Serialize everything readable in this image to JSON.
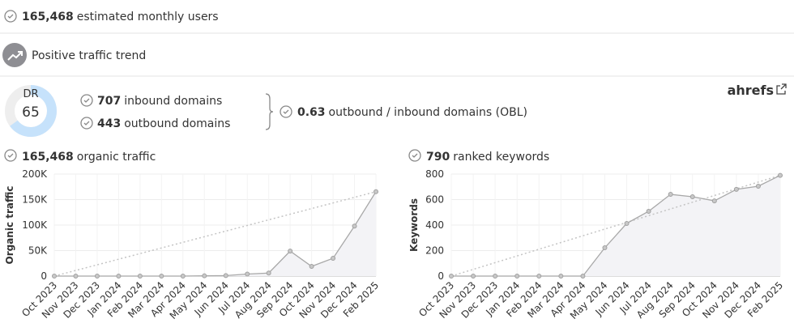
{
  "summary": {
    "users_value": "165,468",
    "users_label": "estimated monthly users",
    "trend_label": "Positive traffic trend"
  },
  "authority": {
    "dr_label": "DR",
    "dr": 65,
    "inbound_value": "707",
    "inbound_label": "inbound domains",
    "outbound_value": "443",
    "outbound_label": "outbound domains",
    "obl_value": "0.63",
    "obl_label": "outbound / inbound domains (OBL)",
    "brand": "ahrefs"
  },
  "panels": [
    {
      "value": "165,468",
      "label": "organic traffic"
    },
    {
      "value": "790",
      "label": "ranked keywords"
    }
  ],
  "chart_data": [
    {
      "type": "area",
      "y_label": "Organic traffic",
      "categories": [
        "Oct 2023",
        "Nov 2023",
        "Dec 2023",
        "Jan 2024",
        "Feb 2024",
        "Mar 2024",
        "Apr 2024",
        "May 2024",
        "Jun 2024",
        "Jul 2024",
        "Aug 2024",
        "Sep 2024",
        "Oct 2024",
        "Nov 2024",
        "Dec 2024",
        "Feb 2025"
      ],
      "series": [
        {
          "name": "Organic traffic",
          "color": "#a8a8a8",
          "values": [
            0,
            0,
            0,
            0,
            0,
            0,
            0,
            500,
            1000,
            4000,
            6000,
            49000,
            19000,
            35000,
            98000,
            165468
          ]
        }
      ],
      "ylim": [
        0,
        200000
      ],
      "yticks": [
        0,
        {
          "value": 50000,
          "label": "50K"
        },
        {
          "value": 100000,
          "label": "100K"
        },
        {
          "value": 150000,
          "label": "150K"
        },
        {
          "value": 200000,
          "label": "200K"
        }
      ],
      "grid": true,
      "trendline": true
    },
    {
      "type": "area",
      "y_label": "Keywords",
      "categories": [
        "Oct 2023",
        "Nov 2023",
        "Dec 2023",
        "Jan 2024",
        "Feb 2024",
        "Mar 2024",
        "Apr 2024",
        "May 2024",
        "Jun 2024",
        "Jul 2024",
        "Aug 2024",
        "Sep 2024",
        "Oct 2024",
        "Nov 2024",
        "Dec 2024",
        "Feb 2025"
      ],
      "series": [
        {
          "name": "Keywords",
          "color": "#a8a8a8",
          "values": [
            0,
            0,
            0,
            0,
            0,
            0,
            0,
            222,
            413,
            508,
            641,
            622,
            590,
            680,
            705,
            790
          ]
        }
      ],
      "ylim": [
        0,
        800
      ],
      "yticks": [
        0,
        200,
        400,
        600,
        800
      ],
      "grid": true,
      "trendline": true
    }
  ]
}
